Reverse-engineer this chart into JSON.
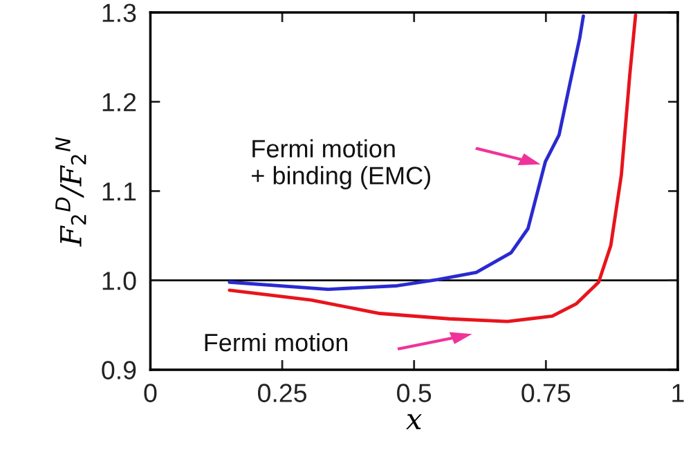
{
  "chart_data": {
    "type": "line",
    "xlabel": "x",
    "ylabel": "F$_{2}$$^{D}$/F$_{2}$$^{N}$",
    "xlim": [
      0,
      1
    ],
    "ylim": [
      0.9,
      1.3
    ],
    "xticks": [
      0,
      0.25,
      0.5,
      0.75,
      1
    ],
    "yticks": [
      {
        "value": 0.9,
        "label": "0.9"
      },
      {
        "value": 1.0,
        "label": "1.0"
      },
      {
        "value": 1.1,
        "label": "1.1"
      },
      {
        "value": 1.2,
        "label": "1.2"
      },
      {
        "value": 1.3,
        "label": "1.3"
      }
    ],
    "grid": false,
    "legend": false,
    "line_style": "solid",
    "marker": "none",
    "series": [
      {
        "color": "#e8141c",
        "x": [
          0.15,
          0.305,
          0.435,
          0.566,
          0.677,
          0.762,
          0.808,
          0.85,
          0.873,
          0.893,
          0.909,
          0.92
        ],
        "values": [
          0.989,
          0.978,
          0.963,
          0.957,
          0.954,
          0.96,
          0.974,
          0.998,
          1.039,
          1.118,
          1.23,
          1.297
        ]
      },
      {
        "color": "#2a2ad0",
        "x": [
          0.15,
          0.337,
          0.468,
          0.546,
          0.618,
          0.684,
          0.716,
          0.749,
          0.775,
          0.795,
          0.814,
          0.821
        ],
        "values": [
          0.998,
          0.99,
          0.994,
          1.001,
          1.009,
          1.031,
          1.058,
          1.133,
          1.163,
          1.219,
          1.271,
          1.296
        ]
      }
    ],
    "ref_lines": [
      {
        "axis": "y",
        "value": 1.0,
        "color": "#000000",
        "line_style": "solid"
      }
    ],
    "annotations": [
      "Fermi motion\n+ binding (EMC)",
      "Fermi motion"
    ]
  }
}
